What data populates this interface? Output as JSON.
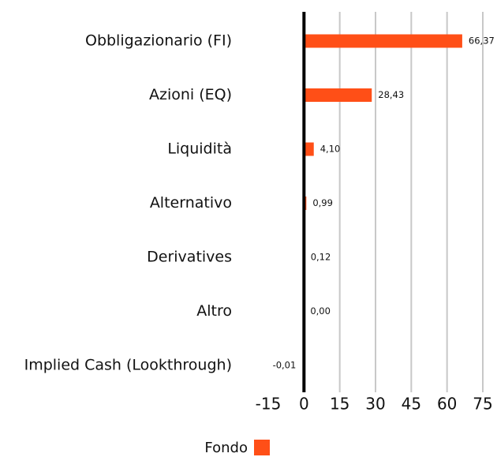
{
  "chart_data": {
    "type": "barh",
    "categories": [
      "Obbligazionario (FI)",
      "Azioni (EQ)",
      "Liquidità",
      "Alternativo",
      "Derivatives",
      "Altro",
      "Implied Cash (Lookthrough)"
    ],
    "series": [
      {
        "name": "Fondo",
        "color": "#ff4f17",
        "values": [
          66.37,
          28.43,
          4.1,
          0.99,
          0.12,
          0.0,
          -0.01
        ],
        "value_labels": [
          "66,37",
          "28,43",
          "4,10",
          "0,99",
          "0,12",
          "0,00",
          "-0,01"
        ]
      }
    ],
    "xlim": [
      -15,
      75
    ],
    "xticks": [
      -15,
      0,
      15,
      30,
      45,
      60,
      75
    ],
    "grid": true
  }
}
